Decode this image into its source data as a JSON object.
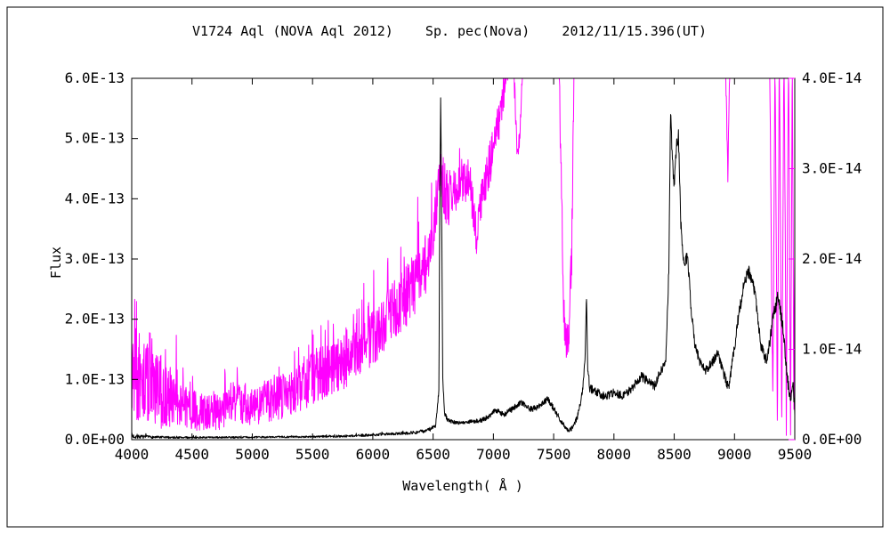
{
  "chart_data": {
    "type": "line",
    "title": "V1724 Aql (NOVA Aql 2012)    Sp. pec(Nova)    2012/11/15.396(UT)",
    "xlabel": "Wavelength( Å )",
    "ylabel_left": "Flux",
    "frame_color": "#000000",
    "background_color": "#ffffff",
    "x_range": [
      4000,
      9500
    ],
    "step": 2.5,
    "x_tick_values": [
      4000,
      4500,
      5000,
      5500,
      6000,
      6500,
      7000,
      7500,
      8000,
      8500,
      9000,
      9500
    ],
    "x_tick_labels": [
      "4000",
      "4500",
      "5000",
      "5500",
      "6000",
      "6500",
      "7000",
      "7500",
      "8000",
      "8500",
      "9000",
      "9500"
    ],
    "left_axis": {
      "range": [
        0,
        6
      ],
      "tick_labels": [
        "0.0E+00",
        "1.0E-13",
        "2.0E-13",
        "3.0E-13",
        "4.0E-13",
        "5.0E-13",
        "6.0E-13"
      ],
      "color": "#000000"
    },
    "right_axis": {
      "range": [
        0,
        4
      ],
      "tick_labels": [
        "0.0E+00",
        "1.0E-14",
        "2.0E-14",
        "3.0E-14",
        "4.0E-14"
      ],
      "color": "#ff00ff"
    },
    "series": [
      {
        "name": "flux-right-axis-spectrum",
        "axis": "right_axis",
        "color": "#ff00ff",
        "seed": 13,
        "spike_p": 0.12,
        "anchors": [
          [
            4000,
            0.9,
            0.7,
            1.6
          ],
          [
            4060,
            0.6,
            0.5,
            0.9
          ],
          [
            4150,
            0.7,
            0.5,
            0.7
          ],
          [
            4250,
            0.45,
            0.35,
            0.5
          ],
          [
            4350,
            0.5,
            0.35,
            0.45
          ],
          [
            4450,
            0.35,
            0.25,
            0.4
          ],
          [
            4600,
            0.3,
            0.2,
            0.35
          ],
          [
            4750,
            0.3,
            0.2,
            0.4
          ],
          [
            4861,
            0.45,
            0.25,
            0.5
          ],
          [
            5000,
            0.35,
            0.2,
            0.35
          ],
          [
            5150,
            0.45,
            0.25,
            0.35
          ],
          [
            5300,
            0.5,
            0.25,
            0.4
          ],
          [
            5450,
            0.65,
            0.3,
            0.45
          ],
          [
            5600,
            0.75,
            0.3,
            0.5
          ],
          [
            5750,
            0.85,
            0.3,
            0.5
          ],
          [
            5900,
            1.0,
            0.3,
            0.6
          ],
          [
            6050,
            1.2,
            0.3,
            0.7
          ],
          [
            6200,
            1.5,
            0.35,
            0.8
          ],
          [
            6350,
            1.7,
            0.35,
            0.9
          ],
          [
            6480,
            2.1,
            0.35,
            0.8
          ],
          [
            6560,
            2.9,
            0.3,
            0.5
          ],
          [
            6620,
            2.6,
            0.3,
            0.3
          ],
          [
            6720,
            2.85,
            0.25,
            0.3
          ],
          [
            6800,
            2.9,
            0.25,
            0.2
          ],
          [
            6860,
            2.25,
            0.2,
            0
          ],
          [
            6890,
            2.6,
            0.2,
            0.2
          ],
          [
            6960,
            3.0,
            0.25,
            0.2
          ],
          [
            7040,
            3.5,
            0.25,
            0.2
          ],
          [
            7110,
            4.1,
            0.25,
            0.2
          ],
          [
            7160,
            4.4,
            0.2,
            0
          ],
          [
            7195,
            3.3,
            0.15,
            0
          ],
          [
            7215,
            3.25,
            0.15,
            0
          ],
          [
            7250,
            4.5,
            0.2,
            0
          ],
          [
            7540,
            4.5,
            0.15,
            0
          ],
          [
            7580,
            1.6,
            0.3,
            0
          ],
          [
            7600,
            1.05,
            0.2,
            0
          ],
          [
            7625,
            1.1,
            0.25,
            0
          ],
          [
            7650,
            2.1,
            0.3,
            0
          ],
          [
            7672,
            4.5,
            0.2,
            0
          ],
          [
            8920,
            4.5,
            0.1,
            0
          ],
          [
            8945,
            2.95,
            0.1,
            0
          ],
          [
            8965,
            4.5,
            0.1,
            0
          ],
          [
            9290,
            4.5,
            0.1,
            0
          ],
          [
            9318,
            0.3,
            0.2,
            0
          ],
          [
            9336,
            4.4,
            0.2,
            0
          ],
          [
            9356,
            0.1,
            0.1,
            0
          ],
          [
            9372,
            4.4,
            0.2,
            0
          ],
          [
            9392,
            0.05,
            0.1,
            0
          ],
          [
            9410,
            4.4,
            0.2,
            0
          ],
          [
            9430,
            0.2,
            0.2,
            0
          ],
          [
            9448,
            4.4,
            0.2,
            0
          ],
          [
            9465,
            0.05,
            0.1,
            0
          ],
          [
            9480,
            4.4,
            0.3,
            0
          ],
          [
            9492,
            0.3,
            0.3,
            0
          ],
          [
            9500,
            2.0,
            0.5,
            0
          ]
        ]
      },
      {
        "name": "flux-left-axis-spectrum",
        "axis": "left_axis",
        "color": "#000000",
        "seed": 7,
        "spike_p": 0.05,
        "anchors": [
          [
            4000,
            0.06,
            0.05,
            0.15
          ],
          [
            4050,
            0.05,
            0.03,
            0.1
          ],
          [
            4200,
            0.04,
            0.02,
            0.05
          ],
          [
            4500,
            0.035,
            0.015,
            0.03
          ],
          [
            5000,
            0.04,
            0.015,
            0.02
          ],
          [
            5500,
            0.05,
            0.015,
            0.02
          ],
          [
            5800,
            0.06,
            0.02,
            0.02
          ],
          [
            6000,
            0.08,
            0.02,
            0.03
          ],
          [
            6200,
            0.1,
            0.02,
            0.03
          ],
          [
            6350,
            0.12,
            0.03,
            0.03
          ],
          [
            6450,
            0.15,
            0.03,
            0
          ],
          [
            6520,
            0.22,
            0.04,
            0
          ],
          [
            6548,
            0.8,
            0.05,
            0
          ],
          [
            6556,
            4.2,
            0.1,
            0
          ],
          [
            6563,
            5.78,
            0.05,
            0
          ],
          [
            6570,
            4.0,
            0.1,
            0
          ],
          [
            6580,
            1.0,
            0.08,
            0
          ],
          [
            6595,
            0.45,
            0.04,
            0
          ],
          [
            6620,
            0.32,
            0.03,
            0
          ],
          [
            6700,
            0.28,
            0.03,
            0
          ],
          [
            6800,
            0.3,
            0.03,
            0
          ],
          [
            6900,
            0.32,
            0.04,
            0
          ],
          [
            6960,
            0.38,
            0.04,
            0
          ],
          [
            7020,
            0.5,
            0.05,
            0
          ],
          [
            7080,
            0.42,
            0.05,
            0
          ],
          [
            7150,
            0.5,
            0.05,
            0
          ],
          [
            7230,
            0.62,
            0.05,
            0
          ],
          [
            7300,
            0.5,
            0.05,
            0
          ],
          [
            7380,
            0.55,
            0.05,
            0
          ],
          [
            7450,
            0.68,
            0.05,
            0
          ],
          [
            7520,
            0.45,
            0.05,
            0
          ],
          [
            7580,
            0.25,
            0.04,
            0
          ],
          [
            7620,
            0.15,
            0.03,
            0
          ],
          [
            7660,
            0.2,
            0.04,
            0
          ],
          [
            7700,
            0.4,
            0.05,
            0
          ],
          [
            7740,
            0.8,
            0.06,
            0
          ],
          [
            7762,
            1.4,
            0.08,
            0
          ],
          [
            7772,
            2.45,
            0.08,
            0
          ],
          [
            7782,
            1.2,
            0.08,
            0
          ],
          [
            7800,
            0.85,
            0.07,
            0
          ],
          [
            7850,
            0.8,
            0.07,
            0
          ],
          [
            7920,
            0.72,
            0.07,
            0
          ],
          [
            8000,
            0.78,
            0.07,
            0
          ],
          [
            8080,
            0.72,
            0.07,
            0
          ],
          [
            8150,
            0.85,
            0.07,
            0
          ],
          [
            8230,
            1.05,
            0.08,
            0
          ],
          [
            8290,
            0.95,
            0.08,
            0
          ],
          [
            8340,
            0.9,
            0.08,
            0
          ],
          [
            8390,
            1.15,
            0.08,
            0
          ],
          [
            8430,
            1.3,
            0.08,
            0
          ],
          [
            8455,
            2.8,
            0.1,
            0
          ],
          [
            8470,
            5.45,
            0.1,
            0
          ],
          [
            8485,
            4.6,
            0.1,
            0
          ],
          [
            8500,
            4.25,
            0.1,
            0
          ],
          [
            8520,
            4.9,
            0.1,
            0
          ],
          [
            8535,
            5.05,
            0.1,
            0
          ],
          [
            8555,
            3.6,
            0.1,
            0
          ],
          [
            8580,
            2.9,
            0.1,
            0
          ],
          [
            8610,
            3.05,
            0.1,
            0
          ],
          [
            8640,
            2.2,
            0.1,
            0
          ],
          [
            8670,
            1.6,
            0.08,
            0
          ],
          [
            8710,
            1.3,
            0.08,
            0
          ],
          [
            8760,
            1.15,
            0.08,
            0
          ],
          [
            8820,
            1.3,
            0.08,
            0
          ],
          [
            8860,
            1.45,
            0.08,
            0
          ],
          [
            8910,
            1.1,
            0.08,
            0
          ],
          [
            8950,
            0.85,
            0.08,
            0
          ],
          [
            8990,
            1.4,
            0.1,
            0
          ],
          [
            9030,
            2.0,
            0.1,
            0
          ],
          [
            9080,
            2.6,
            0.1,
            0
          ],
          [
            9120,
            2.8,
            0.1,
            0
          ],
          [
            9170,
            2.45,
            0.1,
            0
          ],
          [
            9220,
            1.55,
            0.1,
            0
          ],
          [
            9270,
            1.3,
            0.1,
            0
          ],
          [
            9320,
            2.0,
            0.12,
            0
          ],
          [
            9360,
            2.4,
            0.12,
            0
          ],
          [
            9400,
            1.9,
            0.12,
            0
          ],
          [
            9440,
            1.0,
            0.12,
            0
          ],
          [
            9465,
            0.65,
            0.1,
            0
          ],
          [
            9485,
            1.0,
            0.1,
            0
          ],
          [
            9500,
            0.45,
            0.1,
            0
          ]
        ]
      }
    ]
  }
}
